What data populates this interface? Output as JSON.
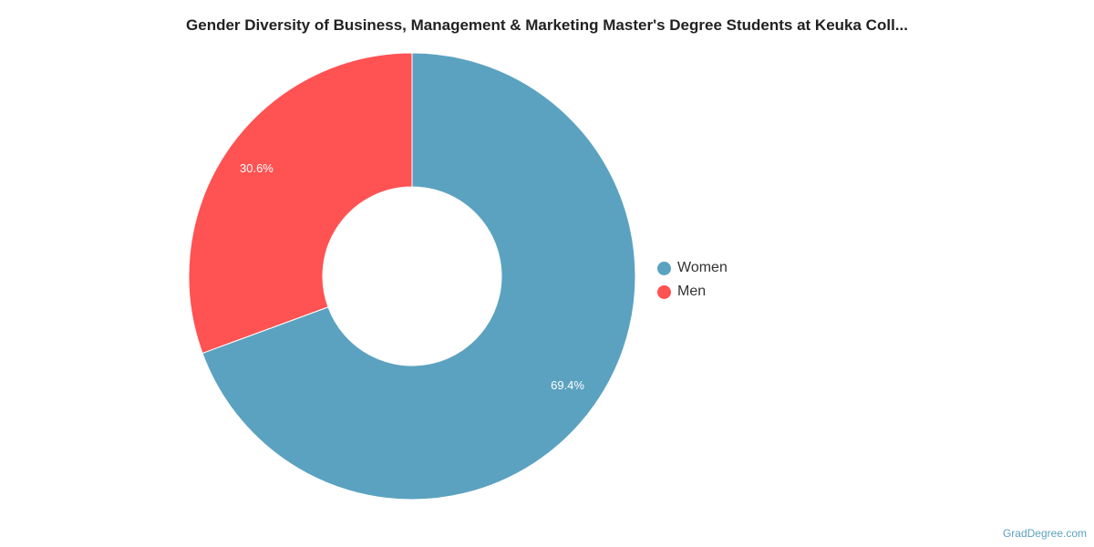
{
  "chart_data": {
    "type": "pie",
    "subtype": "donut",
    "title": "Gender Diversity of Business, Management & Marketing Master's Degree Students at Keuka Coll...",
    "categories": [
      "Women",
      "Men"
    ],
    "values": [
      69.4,
      30.6
    ],
    "labels": [
      "69.4%",
      "30.6%"
    ],
    "colors": [
      "#5ba2c0",
      "#ff5252"
    ],
    "legend_placement": "right"
  },
  "watermark": "GradDegree.com"
}
